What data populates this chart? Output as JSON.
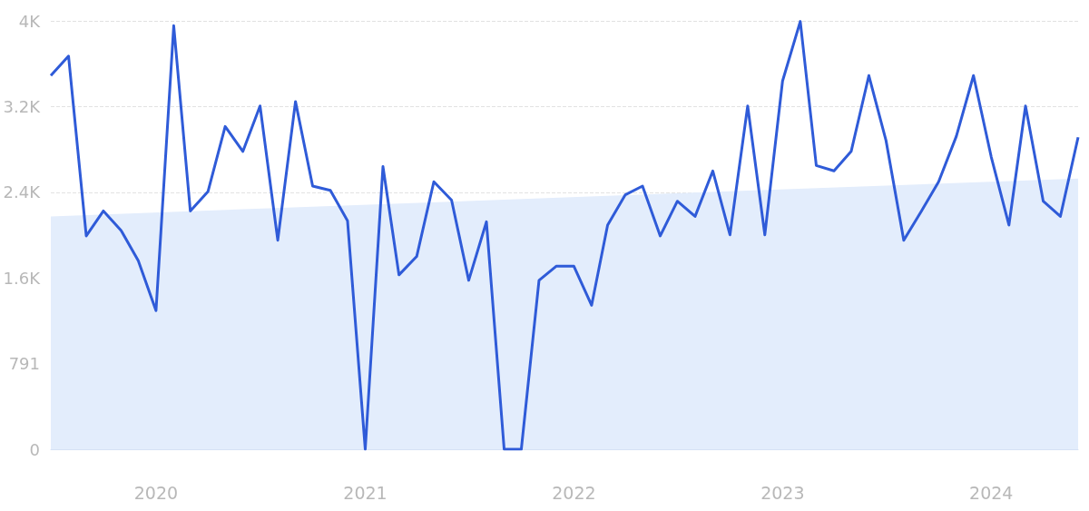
{
  "chart_data": {
    "type": "line",
    "x": [
      "2019-07",
      "2019-08",
      "2019-09",
      "2019-10",
      "2019-11",
      "2019-12",
      "2020-01",
      "2020-02",
      "2020-03",
      "2020-04",
      "2020-05",
      "2020-06",
      "2020-07",
      "2020-08",
      "2020-09",
      "2020-10",
      "2020-11",
      "2020-12",
      "2021-01",
      "2021-02",
      "2021-03",
      "2021-04",
      "2021-05",
      "2021-06",
      "2021-07",
      "2021-08",
      "2021-09",
      "2021-10",
      "2021-11",
      "2021-12",
      "2022-01",
      "2022-02",
      "2022-03",
      "2022-04",
      "2022-05",
      "2022-06",
      "2022-07",
      "2022-08",
      "2022-09",
      "2022-10",
      "2022-11",
      "2022-12",
      "2023-01",
      "2023-02",
      "2023-03",
      "2023-04",
      "2023-05",
      "2023-06",
      "2023-07",
      "2023-08",
      "2023-09",
      "2023-10",
      "2023-11",
      "2023-12",
      "2024-01",
      "2024-02",
      "2024-03",
      "2024-04",
      "2024-05",
      "2024-06"
    ],
    "series": [
      {
        "type": "area",
        "x": [
          "2019-07",
          "2024-06"
        ],
        "color": "#e3edfc",
        "values": [
          2150,
          2500
        ]
      },
      {
        "color": "#2f5bd8",
        "values": [
          3450,
          3630,
          1970,
          2200,
          2020,
          1740,
          1280,
          3910,
          2200,
          2380,
          2980,
          2750,
          3170,
          1930,
          3210,
          2430,
          2390,
          2110,
          0,
          2610,
          1610,
          1780,
          2470,
          2300,
          1560,
          2100,
          0,
          0,
          1560,
          1690,
          1690,
          1330,
          2070,
          2350,
          2430,
          1970,
          2290,
          2150,
          2570,
          1980,
          3170,
          1980,
          3400,
          3950,
          2620,
          2570,
          2750,
          3450,
          2850,
          1930,
          2200,
          2470,
          2890,
          3450,
          2700,
          2070,
          3170,
          2290,
          2150,
          2880
        ]
      }
    ],
    "xlim": [
      "2019-07",
      "2024-06"
    ],
    "xticks": [
      "2020",
      "2021",
      "2022",
      "2023",
      "2024"
    ],
    "ylim": [
      0,
      3955
    ],
    "yticks": [
      0,
      791,
      {
        "value": 1582,
        "label": "1.6K"
      },
      {
        "value": 2373,
        "label": "2.4K"
      },
      {
        "value": 3164,
        "label": "3.2K"
      },
      {
        "value": 3955,
        "label": "4K"
      }
    ],
    "grid": "y",
    "line_style": "solid",
    "marker": "none"
  }
}
